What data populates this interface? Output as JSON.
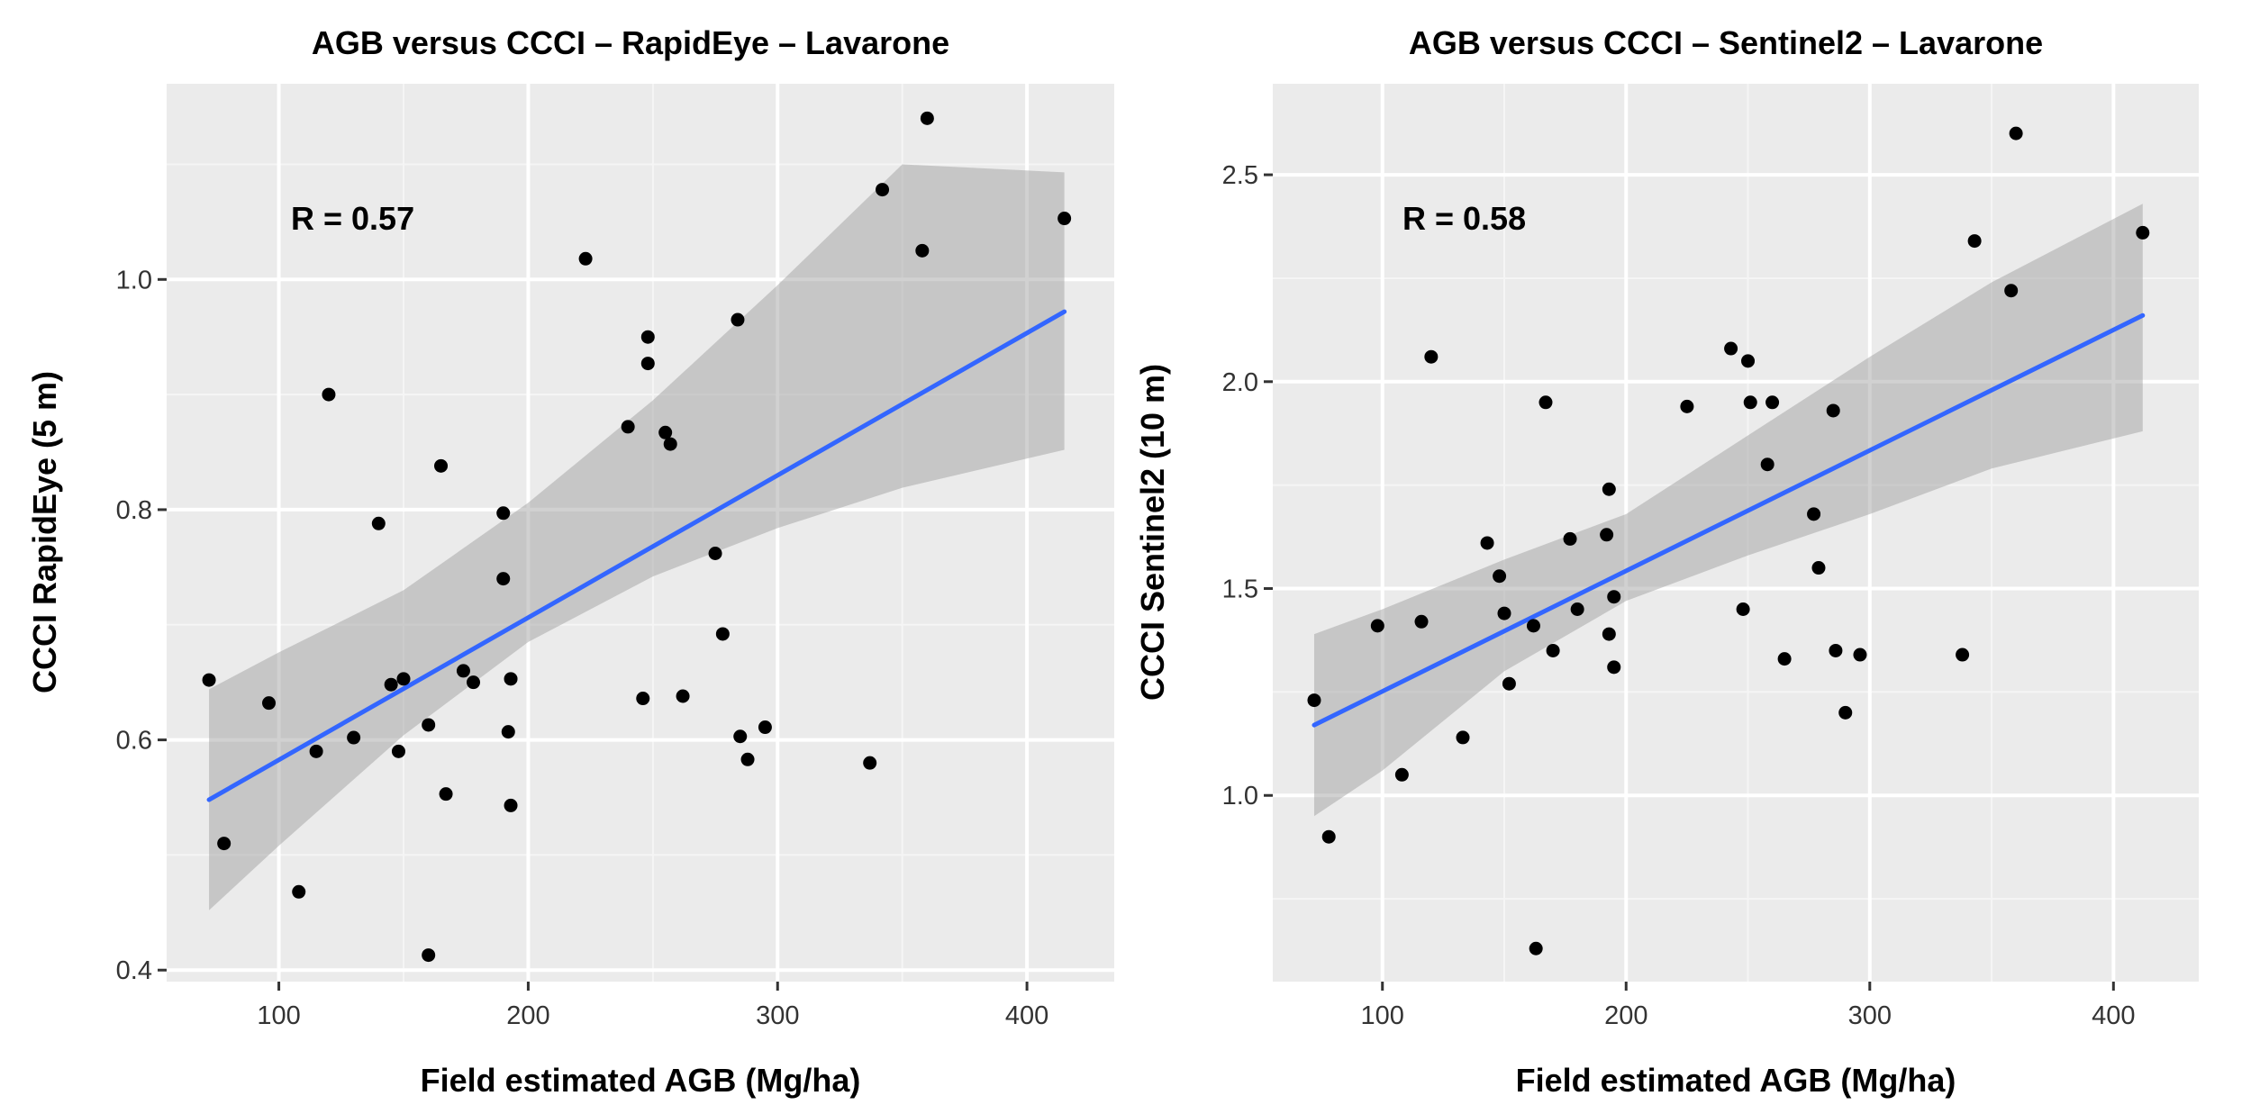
{
  "chart_data": [
    {
      "type": "scatter",
      "title": "AGB versus CCCI – RapidEye – Lavarone",
      "xlabel": "Field estimated AGB (Mg/ha)",
      "ylabel": "CCCI RapidEye (5 m)",
      "annotation": "R = 0.57",
      "xlim": [
        55,
        435
      ],
      "ylim": [
        0.39,
        1.17
      ],
      "x_ticks": [
        100,
        200,
        300,
        400
      ],
      "x_tick_labels": [
        "100",
        "200",
        "300",
        "400"
      ],
      "y_ticks": [
        0.4,
        0.6,
        0.8,
        1.0
      ],
      "y_tick_labels": [
        "0.4",
        "0.6",
        "0.8",
        "1.0"
      ],
      "grid": true,
      "points": [
        [
          72,
          0.652
        ],
        [
          78,
          0.51
        ],
        [
          96,
          0.632
        ],
        [
          108,
          0.468
        ],
        [
          115,
          0.59
        ],
        [
          120,
          0.9
        ],
        [
          130,
          0.602
        ],
        [
          140,
          0.788
        ],
        [
          145,
          0.648
        ],
        [
          148,
          0.59
        ],
        [
          150,
          0.653
        ],
        [
          160,
          0.613
        ],
        [
          160,
          0.413
        ],
        [
          165,
          0.838
        ],
        [
          167,
          0.553
        ],
        [
          174,
          0.66
        ],
        [
          178,
          0.65
        ],
        [
          190,
          0.797
        ],
        [
          190,
          0.74
        ],
        [
          192,
          0.607
        ],
        [
          193,
          0.653
        ],
        [
          193,
          0.543
        ],
        [
          223,
          1.018
        ],
        [
          240,
          0.872
        ],
        [
          246,
          0.636
        ],
        [
          248,
          0.95
        ],
        [
          248,
          0.927
        ],
        [
          255,
          0.867
        ],
        [
          257,
          0.857
        ],
        [
          262,
          0.638
        ],
        [
          275,
          0.762
        ],
        [
          278,
          0.692
        ],
        [
          284,
          0.965
        ],
        [
          285,
          0.603
        ],
        [
          288,
          0.583
        ],
        [
          295,
          0.611
        ],
        [
          337,
          0.58
        ],
        [
          342,
          1.078
        ],
        [
          358,
          1.025
        ],
        [
          360,
          1.14
        ],
        [
          415,
          1.053
        ]
      ],
      "fit": {
        "x_start": 72,
        "x_end": 415,
        "y_start": 0.548,
        "y_end": 0.972
      },
      "confidence_band": [
        [
          72,
          0.452,
          0.644
        ],
        [
          100,
          0.508,
          0.676
        ],
        [
          150,
          0.604,
          0.73
        ],
        [
          200,
          0.685,
          0.806
        ],
        [
          250,
          0.742,
          0.895
        ],
        [
          300,
          0.784,
          0.995
        ],
        [
          350,
          0.819,
          1.1
        ],
        [
          415,
          0.852,
          1.093
        ]
      ]
    },
    {
      "type": "scatter",
      "title": "AGB versus CCCI – Sentinel2 – Lavarone",
      "xlabel": "Field estimated AGB (Mg/ha)",
      "ylabel": "CCCI Sentinel2 (10 m)",
      "annotation": "R = 0.58",
      "xlim": [
        55,
        435
      ],
      "ylim": [
        0.55,
        2.72
      ],
      "x_ticks": [
        100,
        200,
        300,
        400
      ],
      "x_tick_labels": [
        "100",
        "200",
        "300",
        "400"
      ],
      "y_ticks": [
        1.0,
        1.5,
        2.0,
        2.5
      ],
      "y_tick_labels": [
        "1.0",
        "1.5",
        "2.0",
        "2.5"
      ],
      "grid": true,
      "points": [
        [
          72,
          1.23
        ],
        [
          78,
          0.9
        ],
        [
          98,
          1.41
        ],
        [
          108,
          1.05
        ],
        [
          116,
          1.42
        ],
        [
          120,
          2.06
        ],
        [
          133,
          1.14
        ],
        [
          143,
          1.61
        ],
        [
          148,
          1.53
        ],
        [
          150,
          1.44
        ],
        [
          152,
          1.27
        ],
        [
          162,
          1.41
        ],
        [
          163,
          0.63
        ],
        [
          167,
          1.95
        ],
        [
          170,
          1.35
        ],
        [
          177,
          1.62
        ],
        [
          180,
          1.45
        ],
        [
          192,
          1.63
        ],
        [
          193,
          1.74
        ],
        [
          193,
          1.39
        ],
        [
          195,
          1.48
        ],
        [
          195,
          1.31
        ],
        [
          225,
          1.94
        ],
        [
          243,
          2.08
        ],
        [
          248,
          1.45
        ],
        [
          250,
          2.05
        ],
        [
          251,
          1.95
        ],
        [
          258,
          1.8
        ],
        [
          260,
          1.95
        ],
        [
          265,
          1.33
        ],
        [
          277,
          1.68
        ],
        [
          279,
          1.55
        ],
        [
          285,
          1.93
        ],
        [
          286,
          1.35
        ],
        [
          290,
          1.2
        ],
        [
          296,
          1.34
        ],
        [
          338,
          1.34
        ],
        [
          343,
          2.34
        ],
        [
          358,
          2.22
        ],
        [
          360,
          2.6
        ],
        [
          412,
          2.36
        ]
      ],
      "fit": {
        "x_start": 72,
        "x_end": 412,
        "y_start": 1.17,
        "y_end": 2.16
      },
      "confidence_band": [
        [
          72,
          0.95,
          1.39
        ],
        [
          100,
          1.06,
          1.45
        ],
        [
          150,
          1.3,
          1.57
        ],
        [
          200,
          1.47,
          1.68
        ],
        [
          250,
          1.58,
          1.87
        ],
        [
          300,
          1.68,
          2.06
        ],
        [
          350,
          1.79,
          2.24
        ],
        [
          412,
          1.88,
          2.43
        ]
      ]
    }
  ]
}
